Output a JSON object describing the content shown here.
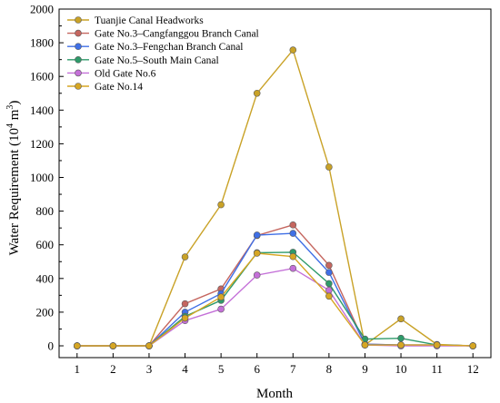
{
  "chart_data": {
    "type": "line",
    "xlabel": "Month",
    "ylabel_main": "Water Requirement (10",
    "ylabel_sup": "4",
    "ylabel_unit": " m",
    "ylabel_sup2": "3",
    "ylabel_close": ")",
    "x": [
      1,
      2,
      3,
      4,
      5,
      6,
      7,
      8,
      9,
      10,
      11,
      12
    ],
    "xlim": [
      0.5,
      12.5
    ],
    "ylim": [
      -70,
      2000
    ],
    "yticks": [
      0,
      200,
      400,
      600,
      800,
      1000,
      1200,
      1400,
      1600,
      1800,
      2000
    ],
    "legend_position": "top-left",
    "grid": false,
    "series": [
      {
        "name": "Tuanjie Canal Headworks",
        "color": "#c9a227",
        "values": [
          0,
          0,
          0,
          528,
          838,
          1500,
          1757,
          1062,
          5,
          160,
          8,
          0
        ]
      },
      {
        "name": "Gate No.3–Cangfanggou Branch Canal",
        "color": "#c5665f",
        "values": [
          0,
          0,
          0,
          250,
          338,
          655,
          718,
          478,
          10,
          5,
          5,
          0
        ]
      },
      {
        "name": "Gate No.3–Fengchan Branch Canal",
        "color": "#3f6fe6",
        "values": [
          0,
          0,
          0,
          200,
          310,
          658,
          668,
          436,
          10,
          5,
          5,
          0
        ]
      },
      {
        "name": "Gate No.5–South Main Canal",
        "color": "#2e9a6a",
        "values": [
          0,
          0,
          0,
          175,
          270,
          553,
          556,
          370,
          40,
          45,
          5,
          0
        ]
      },
      {
        "name": "Old Gate No.6",
        "color": "#c470d8",
        "values": [
          0,
          0,
          0,
          150,
          218,
          420,
          460,
          330,
          5,
          0,
          0,
          0
        ]
      },
      {
        "name": "Gate No.14",
        "color": "#d6a623",
        "values": [
          0,
          0,
          0,
          165,
          290,
          550,
          530,
          295,
          5,
          5,
          5,
          0
        ]
      }
    ]
  }
}
